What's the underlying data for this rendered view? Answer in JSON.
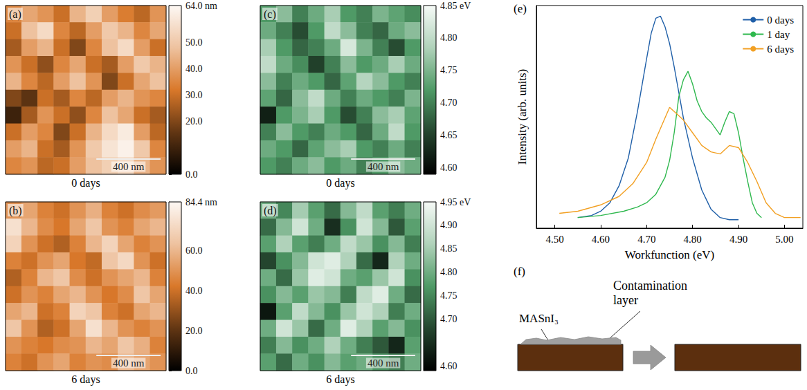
{
  "chart_data": [
    {
      "type": "heatmap",
      "panel": "(a)",
      "caption": "0 days",
      "color": "#d9782a",
      "scale_bar": {
        "label": "400 nm",
        "length_nm": 400,
        "image_size_nm": 1000
      },
      "colorbar": {
        "range": [
          0,
          64
        ],
        "ticks": [
          {
            "value": 0,
            "label": "0.0"
          },
          {
            "value": 20,
            "label": "20.0"
          },
          {
            "value": 30,
            "label": "30.0"
          },
          {
            "value": 40,
            "label": "40.0"
          },
          {
            "value": 50,
            "label": "50.0"
          },
          {
            "value": 64,
            "label": "64.0 nm"
          }
        ]
      },
      "cells": [
        [
          35,
          42,
          38,
          30,
          45,
          52,
          40,
          33,
          28,
          38
        ],
        [
          30,
          48,
          55,
          35,
          28,
          40,
          50,
          45,
          35,
          42
        ],
        [
          25,
          40,
          45,
          30,
          20,
          35,
          48,
          55,
          40,
          30
        ],
        [
          38,
          30,
          22,
          35,
          42,
          30,
          25,
          40,
          50,
          45
        ],
        [
          45,
          35,
          28,
          40,
          48,
          38,
          20,
          30,
          42,
          48
        ],
        [
          20,
          15,
          30,
          25,
          35,
          28,
          40,
          45,
          38,
          35
        ],
        [
          10,
          25,
          38,
          30,
          22,
          35,
          48,
          42,
          30,
          25
        ],
        [
          30,
          40,
          35,
          20,
          30,
          45,
          55,
          60,
          40,
          28
        ],
        [
          40,
          45,
          30,
          25,
          38,
          50,
          58,
          62,
          50,
          35
        ],
        [
          35,
          38,
          28,
          30,
          40,
          48,
          52,
          55,
          45,
          38
        ]
      ]
    },
    {
      "type": "heatmap",
      "panel": "(b)",
      "caption": "6 days",
      "color": "#d9782a",
      "scale_bar": {
        "label": "400 nm",
        "length_nm": 400,
        "image_size_nm": 1000
      },
      "colorbar": {
        "range": [
          0,
          84.4
        ],
        "ticks": [
          {
            "value": 0,
            "label": "0.0"
          },
          {
            "value": 20,
            "label": "20.0"
          },
          {
            "value": 40,
            "label": "40.0"
          },
          {
            "value": 60,
            "label": "60.0"
          },
          {
            "value": 84.4,
            "label": "84.4 nm"
          }
        ]
      },
      "cells": [
        [
          50,
          55,
          45,
          40,
          50,
          58,
          45,
          40,
          48,
          52
        ],
        [
          75,
          60,
          48,
          42,
          55,
          65,
          50,
          45,
          55,
          60
        ],
        [
          70,
          50,
          40,
          35,
          45,
          60,
          70,
          55,
          45,
          50
        ],
        [
          45,
          40,
          50,
          55,
          42,
          38,
          65,
          72,
          50,
          40
        ],
        [
          35,
          45,
          60,
          65,
          48,
          40,
          50,
          55,
          60,
          45
        ],
        [
          40,
          50,
          45,
          55,
          60,
          50,
          42,
          48,
          65,
          55
        ],
        [
          55,
          60,
          40,
          45,
          70,
          65,
          45,
          40,
          55,
          60
        ],
        [
          65,
          50,
          35,
          40,
          55,
          75,
          60,
          50,
          45,
          50
        ],
        [
          50,
          45,
          42,
          48,
          50,
          60,
          55,
          65,
          58,
          45
        ],
        [
          45,
          40,
          50,
          55,
          45,
          50,
          48,
          60,
          55,
          50
        ]
      ]
    },
    {
      "type": "heatmap",
      "panel": "(c)",
      "caption": "0 days",
      "color": "#4f9a66",
      "scale_bar": {
        "label": "400 nm",
        "length_nm": 400,
        "image_size_nm": 1000
      },
      "colorbar": {
        "range": [
          4.59,
          4.85
        ],
        "ticks": [
          {
            "value": 4.6,
            "label": "4.60"
          },
          4.65,
          {
            "value": 4.7,
            "label": "4.70"
          },
          4.75,
          {
            "value": 4.8,
            "label": "4.80"
          },
          {
            "value": 4.85,
            "label": "4.85 eV"
          }
        ]
      },
      "cells": [
        [
          4.72,
          4.76,
          4.7,
          4.74,
          4.78,
          4.72,
          4.7,
          4.75,
          4.73,
          4.71
        ],
        [
          4.74,
          4.7,
          4.66,
          4.72,
          4.8,
          4.76,
          4.7,
          4.68,
          4.74,
          4.76
        ],
        [
          4.78,
          4.72,
          4.68,
          4.7,
          4.74,
          4.82,
          4.75,
          4.7,
          4.66,
          4.72
        ],
        [
          4.8,
          4.74,
          4.71,
          4.65,
          4.7,
          4.76,
          4.72,
          4.74,
          4.78,
          4.74
        ],
        [
          4.76,
          4.7,
          4.74,
          4.72,
          4.68,
          4.73,
          4.79,
          4.76,
          4.72,
          4.7
        ],
        [
          4.73,
          4.68,
          4.76,
          4.8,
          4.74,
          4.7,
          4.74,
          4.72,
          4.7,
          4.75
        ],
        [
          4.62,
          4.72,
          4.75,
          4.78,
          4.72,
          4.66,
          4.7,
          4.76,
          4.78,
          4.73
        ],
        [
          4.7,
          4.76,
          4.72,
          4.7,
          4.74,
          4.72,
          4.68,
          4.74,
          4.8,
          4.72
        ],
        [
          4.74,
          4.72,
          4.68,
          4.73,
          4.76,
          4.78,
          4.72,
          4.7,
          4.74,
          4.7
        ],
        [
          4.72,
          4.7,
          4.74,
          4.76,
          4.72,
          4.74,
          4.7,
          4.72,
          4.76,
          4.74
        ]
      ]
    },
    {
      "type": "heatmap",
      "panel": "(d)",
      "caption": "6 days",
      "color": "#4f9a66",
      "scale_bar": {
        "label": "400 nm",
        "length_nm": 400,
        "image_size_nm": 1000
      },
      "colorbar": {
        "range": [
          4.59,
          4.95
        ],
        "ticks": [
          {
            "value": 4.6,
            "label": "4.60"
          },
          {
            "value": 4.7,
            "label": "4.70"
          },
          4.75,
          {
            "value": 4.8,
            "label": "4.80"
          },
          4.85,
          {
            "value": 4.9,
            "label": "4.90"
          },
          {
            "value": 4.95,
            "label": "4.95 eV"
          }
        ]
      },
      "cells": [
        [
          4.8,
          4.75,
          4.85,
          4.78,
          4.72,
          4.82,
          4.88,
          4.78,
          4.74,
          4.8
        ],
        [
          4.72,
          4.82,
          4.9,
          4.8,
          4.65,
          4.76,
          4.9,
          4.82,
          4.7,
          4.78
        ],
        [
          4.78,
          4.86,
          4.78,
          4.74,
          4.8,
          4.88,
          4.84,
          4.76,
          4.82,
          4.74
        ],
        [
          4.68,
          4.76,
          4.82,
          4.9,
          4.92,
          4.86,
          4.72,
          4.64,
          4.86,
          4.8
        ],
        [
          4.8,
          4.72,
          4.84,
          4.92,
          4.9,
          4.8,
          4.78,
          4.84,
          4.9,
          4.76
        ],
        [
          4.76,
          4.82,
          4.78,
          4.84,
          4.82,
          4.74,
          4.88,
          4.92,
          4.8,
          4.72
        ],
        [
          4.62,
          4.78,
          4.88,
          4.82,
          4.76,
          4.84,
          4.9,
          4.86,
          4.74,
          4.8
        ],
        [
          4.8,
          4.9,
          4.84,
          4.72,
          4.8,
          4.92,
          4.86,
          4.78,
          4.82,
          4.76
        ],
        [
          4.74,
          4.82,
          4.76,
          4.8,
          4.86,
          4.8,
          4.74,
          4.7,
          4.64,
          4.78
        ],
        [
          4.78,
          4.72,
          4.8,
          4.76,
          4.82,
          4.78,
          4.8,
          4.76,
          4.74,
          4.8
        ]
      ]
    },
    {
      "type": "line",
      "panel": "(e)",
      "xlabel": "Workfunction (eV)",
      "ylabel": "Intensity (arb. units)",
      "xlim": [
        4.46,
        5.04
      ],
      "xticks": [
        {
          "value": 4.5,
          "label": "4.50"
        },
        {
          "value": 4.6,
          "label": "4.60"
        },
        {
          "value": 4.7,
          "label": "4.70"
        },
        {
          "value": 4.8,
          "label": "4.80"
        },
        {
          "value": 4.9,
          "label": "4.90"
        },
        {
          "value": 5.0,
          "label": "5.00"
        }
      ],
      "ylim": [
        0,
        1.05
      ],
      "tick_labels": "x",
      "legend": "upper right",
      "series": [
        {
          "name": "0 days",
          "color": "#1f5fa8",
          "x": [
            4.55,
            4.58,
            4.6,
            4.62,
            4.64,
            4.66,
            4.68,
            4.7,
            4.71,
            4.72,
            4.73,
            4.74,
            4.75,
            4.76,
            4.77,
            4.78,
            4.8,
            4.82,
            4.84,
            4.86,
            4.88,
            4.9
          ],
          "values": [
            0.05,
            0.06,
            0.08,
            0.12,
            0.2,
            0.33,
            0.55,
            0.8,
            0.92,
            0.99,
            1.0,
            0.95,
            0.87,
            0.76,
            0.64,
            0.52,
            0.33,
            0.18,
            0.09,
            0.05,
            0.04,
            0.04
          ]
        },
        {
          "name": "1 day",
          "color": "#2fb84e",
          "x": [
            4.55,
            4.6,
            4.65,
            4.68,
            4.7,
            4.72,
            4.74,
            4.75,
            4.76,
            4.77,
            4.78,
            4.79,
            4.8,
            4.81,
            4.82,
            4.83,
            4.84,
            4.85,
            4.86,
            4.87,
            4.88,
            4.89,
            4.9,
            4.91,
            4.92,
            4.93,
            4.94,
            4.95
          ],
          "values": [
            0.05,
            0.06,
            0.08,
            0.1,
            0.12,
            0.16,
            0.24,
            0.32,
            0.45,
            0.62,
            0.7,
            0.74,
            0.68,
            0.6,
            0.55,
            0.52,
            0.5,
            0.47,
            0.44,
            0.5,
            0.55,
            0.54,
            0.45,
            0.33,
            0.22,
            0.12,
            0.07,
            0.05
          ]
        },
        {
          "name": "6 days",
          "color": "#f2a023",
          "x": [
            4.51,
            4.55,
            4.6,
            4.64,
            4.67,
            4.7,
            4.72,
            4.74,
            4.75,
            4.76,
            4.78,
            4.8,
            4.82,
            4.84,
            4.86,
            4.88,
            4.9,
            4.92,
            4.94,
            4.96,
            4.98,
            5.0,
            5.02,
            5.035
          ],
          "values": [
            0.07,
            0.08,
            0.11,
            0.15,
            0.21,
            0.31,
            0.42,
            0.52,
            0.57,
            0.55,
            0.51,
            0.45,
            0.39,
            0.36,
            0.35,
            0.39,
            0.38,
            0.31,
            0.22,
            0.12,
            0.07,
            0.05,
            0.05,
            0.05
          ]
        }
      ]
    }
  ],
  "diagram": {
    "panel": "(f)",
    "material_label": "MASnI₃",
    "layer_label": "Contamination layer"
  }
}
